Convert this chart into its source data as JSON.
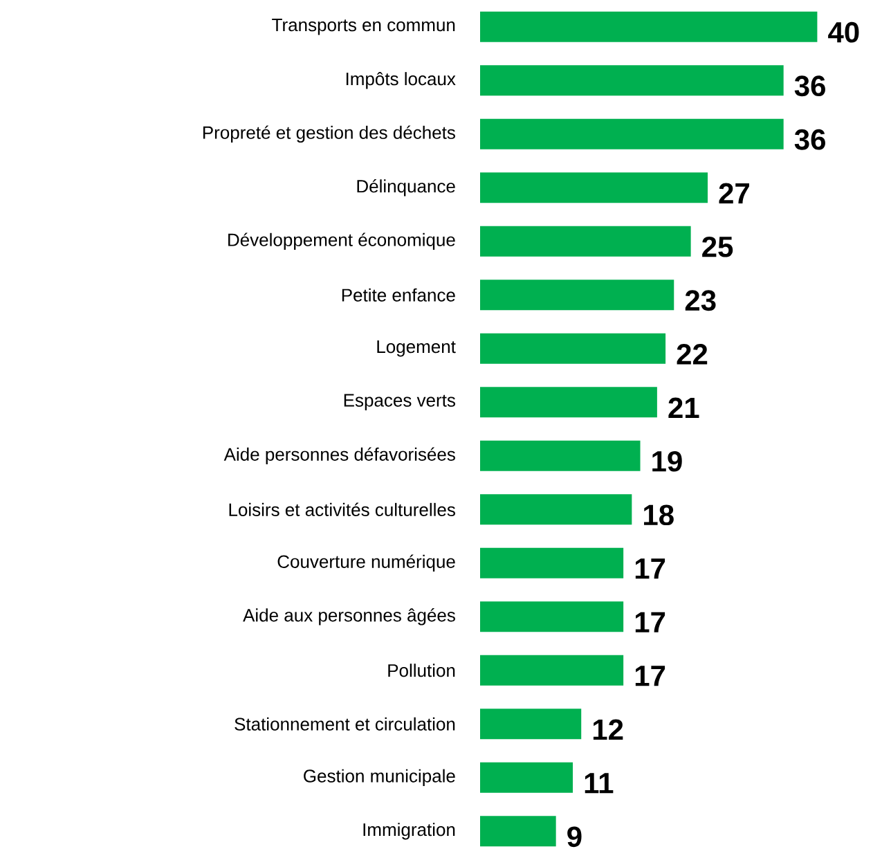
{
  "chart_data": {
    "type": "bar",
    "orientation": "horizontal",
    "color": "#00b050",
    "data_labels": true,
    "categories": [
      "Transports en commun",
      "Impôts locaux",
      "Propreté et gestion des déchets",
      "Délinquance",
      "Développement économique",
      "Petite enfance",
      "Logement",
      "Espaces verts",
      "Aide personnes défavorisées",
      "Loisirs et activités culturelles",
      "Couverture numérique",
      "Aide aux personnes âgées",
      "Pollution",
      "Stationnement et circulation",
      "Gestion municipale",
      "Immigration"
    ],
    "values": [
      40,
      36,
      36,
      27,
      25,
      23,
      22,
      21,
      19,
      18,
      17,
      17,
      17,
      12,
      11,
      9
    ]
  }
}
